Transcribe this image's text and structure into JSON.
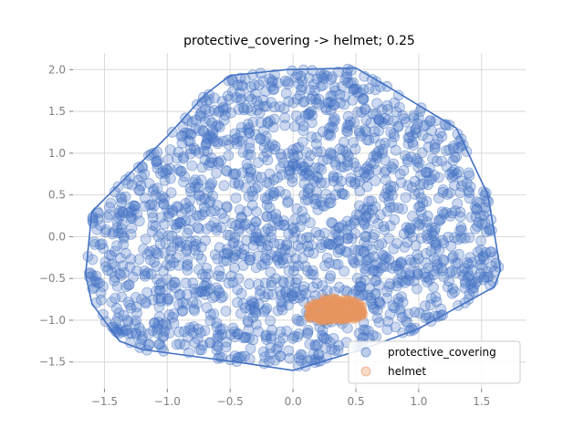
{
  "chart_data": {
    "type": "scatter",
    "title": "protective_covering -> helmet; 0.25",
    "xlabel": "",
    "ylabel": "",
    "xlim": [
      -1.75,
      1.85
    ],
    "ylim": [
      -1.82,
      2.2
    ],
    "grid": true,
    "legend_position": "lower-right",
    "x_ticks": [
      -1.5,
      -1.0,
      -0.5,
      0.0,
      0.5,
      1.0,
      1.5
    ],
    "x_tick_labels": [
      "−1.5",
      "−1.0",
      "−0.5",
      "0.0",
      "0.5",
      "1.0",
      "1.5"
    ],
    "y_ticks": [
      -1.5,
      -1.0,
      -0.5,
      0.0,
      0.5,
      1.0,
      1.5,
      2.0
    ],
    "y_tick_labels": [
      "−1.5",
      "−1.0",
      "−0.5",
      "0.0",
      "0.5",
      "1.0",
      "1.5",
      "2.0"
    ],
    "series": [
      {
        "name": "protective_covering",
        "color": "#4472c4",
        "hull": [
          [
            -0.05,
            2.0
          ],
          [
            0.5,
            2.02
          ],
          [
            0.75,
            1.8
          ],
          [
            1.3,
            1.3
          ],
          [
            1.55,
            0.5
          ],
          [
            1.65,
            -0.4
          ],
          [
            1.6,
            -0.6
          ],
          [
            1.0,
            -1.1
          ],
          [
            0.55,
            -1.35
          ],
          [
            0.0,
            -1.6
          ],
          [
            -0.45,
            -1.5
          ],
          [
            -1.2,
            -1.35
          ],
          [
            -1.38,
            -1.25
          ],
          [
            -1.6,
            -0.8
          ],
          [
            -1.65,
            -0.45
          ],
          [
            -1.6,
            0.3
          ],
          [
            -1.0,
            1.2
          ],
          [
            -0.7,
            1.7
          ],
          [
            -0.5,
            1.93
          ],
          [
            -0.05,
            2.0
          ]
        ]
      },
      {
        "name": "helmet",
        "color": "#e8955f",
        "hull": [
          [
            0.12,
            -0.83
          ],
          [
            0.25,
            -0.72
          ],
          [
            0.45,
            -0.75
          ],
          [
            0.55,
            -0.8
          ],
          [
            0.58,
            -0.92
          ],
          [
            0.5,
            -1.0
          ],
          [
            0.25,
            -1.02
          ],
          [
            0.12,
            -0.98
          ],
          [
            0.12,
            -0.83
          ]
        ]
      }
    ]
  }
}
